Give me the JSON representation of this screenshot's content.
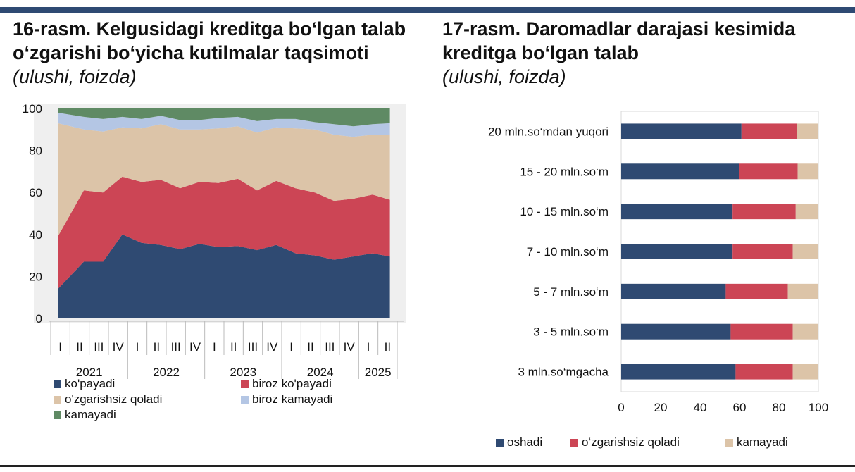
{
  "left_title": {
    "main": "16-rasm. Kelgusidagi kreditga bo‘lgan talab o‘zgarishi bo‘yicha kutilmalar taqsimoti",
    "sub": "(ulushi, foizda)"
  },
  "right_title": {
    "main": "17-rasm. Daromadlar darajasi kesimida kreditga bo‘lgan talab",
    "sub": "(ulushi, foizda)"
  },
  "colors": {
    "navy": "#2f4a72",
    "red": "#cc4555",
    "beige": "#dcc4a8",
    "lightblue": "#b4c6e4",
    "green": "#5f8a64",
    "plot_bg": "#efefef"
  },
  "chart_data": [
    {
      "type": "area",
      "stacked": true,
      "ylim": [
        0,
        100
      ],
      "yticks": [
        "0",
        "20",
        "40",
        "60",
        "80",
        "100"
      ],
      "quarters": [
        "I",
        "II",
        "III",
        "IV",
        "I",
        "II",
        "III",
        "IV",
        "I",
        "II",
        "III",
        "IV",
        "I",
        "II",
        "III",
        "IV",
        "I",
        "II"
      ],
      "years": [
        "2021",
        "2022",
        "2023",
        "2024",
        "2025"
      ],
      "series": [
        {
          "name": "ko'payadi",
          "color": "#2f4a72",
          "values": [
            14,
            27,
            27,
            40,
            36,
            35,
            33,
            35.5,
            34,
            34.5,
            32.5,
            35,
            31,
            30,
            28,
            29.5,
            31,
            29.5
          ]
        },
        {
          "name": "biroz ko'payadi",
          "color": "#cc4555",
          "values": [
            25,
            34,
            33,
            27.5,
            29,
            31,
            29,
            29.5,
            30.5,
            32,
            28.5,
            30.5,
            31,
            30,
            28,
            27.5,
            28,
            27
          ]
        },
        {
          "name": "o'zgarishsiz qoladi",
          "color": "#dcc4a8",
          "values": [
            54,
            29,
            29,
            23.5,
            25.5,
            26.5,
            28,
            25,
            26,
            25,
            27.5,
            25.5,
            28.5,
            30,
            31.5,
            29.5,
            28.5,
            31
          ]
        },
        {
          "name": "biroz kamayadi",
          "color": "#b4c6e4",
          "values": [
            5,
            6,
            6,
            5,
            4.5,
            4,
            4.5,
            4.5,
            5,
            4.5,
            5.5,
            4,
            4.5,
            3.5,
            5,
            5,
            5,
            5.5
          ]
        },
        {
          "name": "kamayadi",
          "color": "#5f8a64",
          "values": [
            2,
            4,
            5,
            4,
            5,
            3.5,
            5.5,
            5.5,
            4.5,
            4,
            6,
            5,
            5,
            6.5,
            7.5,
            8.5,
            7.5,
            7
          ]
        }
      ],
      "legend_position": "bottom"
    },
    {
      "type": "bar",
      "orientation": "horizontal",
      "stacked": true,
      "xlim": [
        0,
        100
      ],
      "xticks": [
        "0",
        "20",
        "40",
        "60",
        "80",
        "100"
      ],
      "categories": [
        "20 mln.so‘mdan yuqori",
        "15 - 20 mln.so‘m",
        "10 - 15 mln.so‘m",
        "7 - 10 mln.so‘m",
        "5 - 7 mln.so‘m",
        "3 - 5 mln.so‘m",
        "3 mln.so‘mgacha"
      ],
      "series": [
        {
          "name": "oshadi",
          "color": "#2f4a72",
          "values": [
            61,
            60,
            56.5,
            56.5,
            53,
            55.5,
            58
          ]
        },
        {
          "name": "o‘zgarishsiz qoladi",
          "color": "#cc4555",
          "values": [
            28,
            29.5,
            32,
            30.5,
            31.5,
            31.5,
            29
          ]
        },
        {
          "name": "kamayadi",
          "color": "#dcc4a8",
          "values": [
            11,
            10.5,
            11.5,
            13,
            15.5,
            13,
            13
          ]
        }
      ],
      "legend_position": "bottom"
    }
  ]
}
